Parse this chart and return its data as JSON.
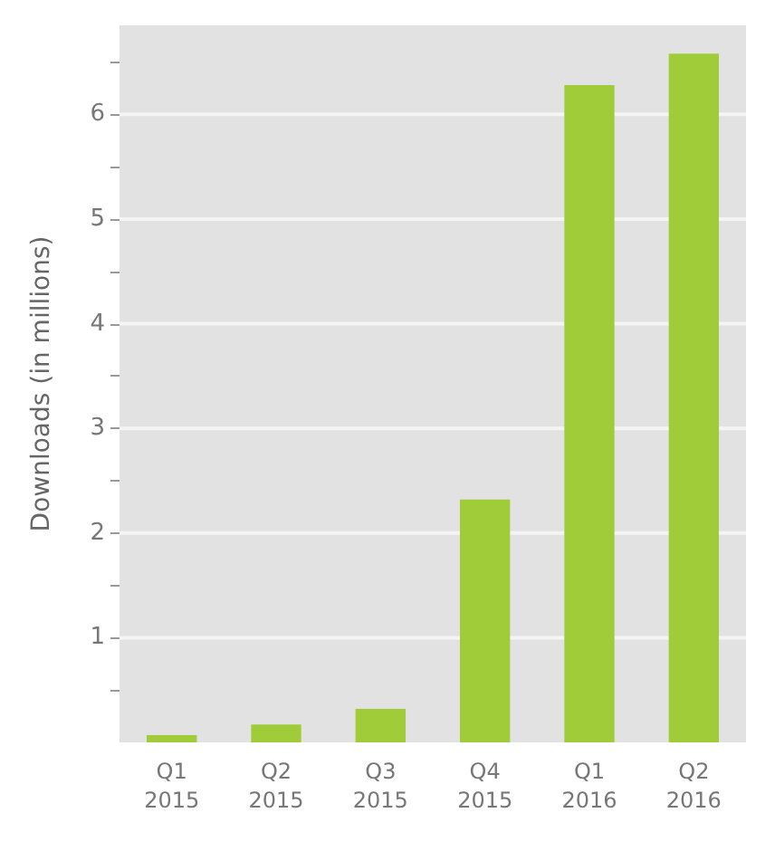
{
  "chart_data": {
    "type": "bar",
    "ylabel": "Downloads (in millions)",
    "categories": [
      "Q1\n2015",
      "Q2\n2015",
      "Q3\n2015",
      "Q4\n2015",
      "Q1\n2016",
      "Q2\n2016"
    ],
    "values": [
      0.07,
      0.17,
      0.32,
      2.32,
      6.28,
      6.58
    ],
    "color": "#a0cc3a",
    "ylim": [
      0,
      6.85
    ],
    "yticks": [
      {
        "value": 0.5,
        "label": null
      },
      1,
      {
        "value": 1.5,
        "label": null
      },
      2,
      {
        "value": 2.5,
        "label": null
      },
      3,
      {
        "value": 3.5,
        "label": null
      },
      4,
      {
        "value": 4.5,
        "label": null
      },
      5,
      {
        "value": 5.5,
        "label": null
      },
      6,
      {
        "value": 6.5,
        "label": null
      }
    ],
    "grid": "y"
  }
}
